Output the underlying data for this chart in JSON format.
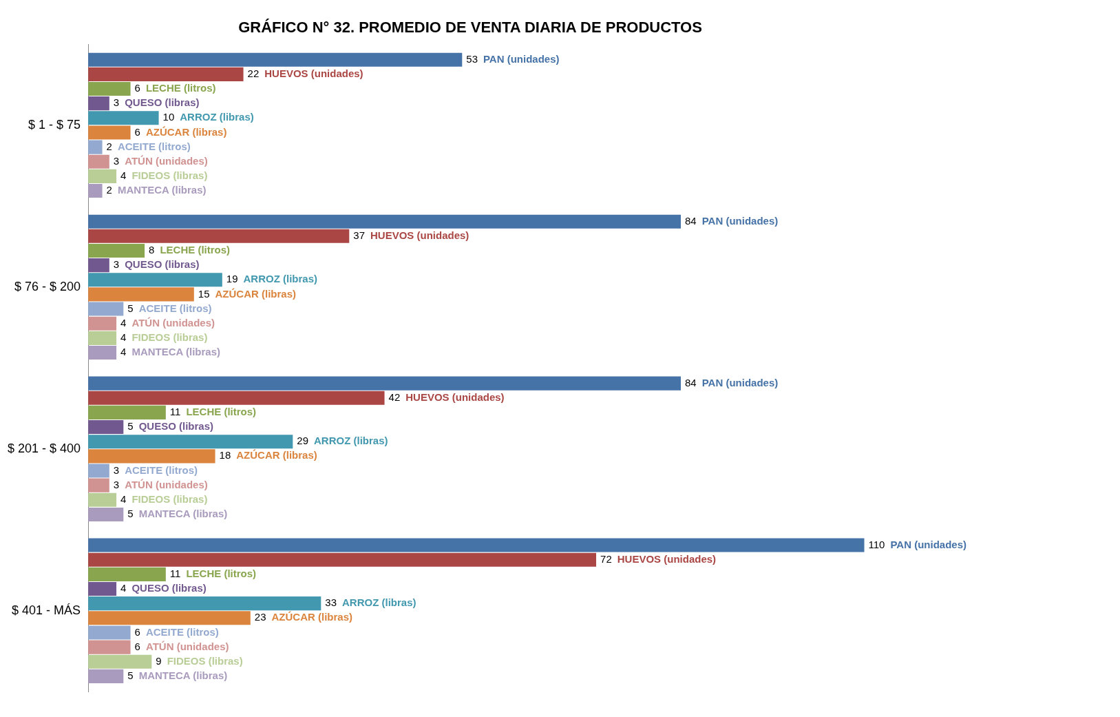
{
  "chart_data": {
    "type": "bar",
    "orientation": "horizontal",
    "title": "GRÁFICO N° 32. PROMEDIO DE VENTA DIARIA DE PRODUCTOS",
    "categories": [
      "$ 1 - $ 75",
      "$ 76 - $ 200",
      "$ 201 - $ 400",
      "$ 401 - MÁS"
    ],
    "data_labels": true,
    "legend": false,
    "tick_labels": "y",
    "series": [
      {
        "name": "PAN (unidades)",
        "color": "#4572a7",
        "values": [
          53,
          84,
          84,
          110
        ]
      },
      {
        "name": "HUEVOS (unidades)",
        "color": "#aa4643",
        "values": [
          22,
          37,
          42,
          72
        ]
      },
      {
        "name": "LECHE (litros)",
        "color": "#89a54e",
        "values": [
          6,
          8,
          11,
          11
        ]
      },
      {
        "name": "QUESO (libras)",
        "color": "#71588f",
        "values": [
          3,
          3,
          5,
          4
        ]
      },
      {
        "name": "ARROZ (libras)",
        "color": "#4198af",
        "values": [
          10,
          19,
          29,
          33
        ]
      },
      {
        "name": "AZÚCAR (libras)",
        "color": "#db843d",
        "values": [
          6,
          15,
          18,
          23
        ]
      },
      {
        "name": "ACEITE (litros)",
        "color": "#93a9cf",
        "values": [
          2,
          5,
          3,
          6
        ]
      },
      {
        "name": "ATÚN (unidades)",
        "color": "#d19392",
        "values": [
          3,
          4,
          3,
          6
        ]
      },
      {
        "name": "FIDEOS (libras)",
        "color": "#b9cd96",
        "values": [
          4,
          4,
          4,
          9
        ]
      },
      {
        "name": "MANTECA (libras)",
        "color": "#a99bbd",
        "values": [
          2,
          4,
          5,
          5
        ]
      }
    ]
  }
}
